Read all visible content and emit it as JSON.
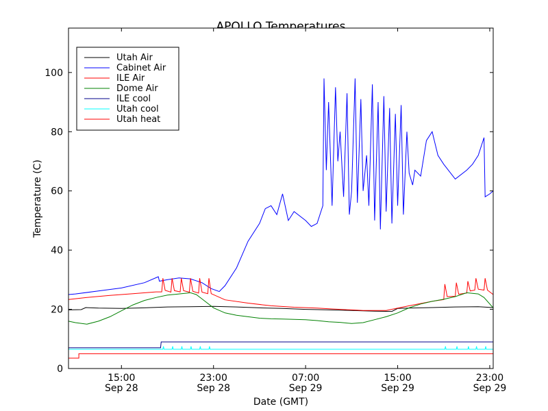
{
  "chart_data": {
    "type": "line",
    "title": "APOLLO Temperatures",
    "xlabel": "Date (GMT)",
    "ylabel": "Temperature (C)",
    "x_unit": "hours since Sep 28 00:00 GMT",
    "xlim": [
      10.4,
      47.3
    ],
    "ylim": [
      0,
      115
    ],
    "yticks": [
      0,
      20,
      40,
      60,
      80,
      100
    ],
    "xticks": [
      {
        "x": 15,
        "line1": "15:00",
        "line2": "Sep 28"
      },
      {
        "x": 23,
        "line1": "23:00",
        "line2": "Sep 28"
      },
      {
        "x": 31,
        "line1": "07:00",
        "line2": "Sep 29"
      },
      {
        "x": 39,
        "line1": "15:00",
        "line2": "Sep 29"
      },
      {
        "x": 47,
        "line1": "23:00",
        "line2": "Sep 29"
      }
    ],
    "legend_position": "top-left",
    "series": [
      {
        "name": "Utah Air",
        "color": "#000000",
        "x": [
          10.4,
          11.5,
          11.9,
          13,
          15,
          17,
          19,
          21,
          23,
          25,
          27,
          29,
          31,
          33,
          35,
          37,
          38.5,
          39,
          40,
          42,
          44,
          46,
          47.3
        ],
        "y": [
          19.8,
          19.9,
          20.6,
          20.4,
          20.3,
          20.5,
          20.8,
          20.9,
          21.0,
          20.8,
          20.5,
          20.3,
          20.0,
          19.8,
          19.6,
          19.4,
          19.3,
          20.3,
          20.4,
          20.6,
          20.8,
          20.9,
          20.6
        ]
      },
      {
        "name": "Cabinet Air",
        "color": "#0000ff",
        "x": [
          10.4,
          11,
          13,
          15,
          17,
          18.2,
          18.3,
          19,
          20,
          21,
          22,
          22.8,
          23.5,
          24,
          25,
          26,
          27,
          27.5,
          28,
          28.5,
          29,
          29.5,
          30,
          31,
          31.5,
          32,
          32.5,
          32.6,
          32.8,
          33,
          33.3,
          33.6,
          33.8,
          34,
          34.3,
          34.6,
          34.8,
          35,
          35.3,
          35.5,
          35.8,
          36,
          36.3,
          36.5,
          36.8,
          37,
          37.3,
          37.5,
          37.8,
          38,
          38.3,
          38.5,
          38.8,
          39,
          39.3,
          39.5,
          39.8,
          40,
          40.3,
          40.5,
          41,
          41.5,
          42,
          42.5,
          43,
          44,
          45,
          45.5,
          46,
          46.5,
          46.6,
          47,
          47.3
        ],
        "y": [
          25,
          25.2,
          26.2,
          27.2,
          29,
          31,
          29.5,
          30,
          30.6,
          30.3,
          29,
          27,
          26,
          28,
          34,
          43,
          49,
          54,
          55,
          52,
          59,
          50,
          53,
          50,
          48,
          49,
          55,
          98,
          67,
          90,
          55,
          95,
          70,
          80,
          58,
          93,
          52,
          60,
          98,
          56,
          91,
          60,
          72,
          55,
          96,
          50,
          90,
          47,
          92,
          53,
          88,
          49,
          86,
          55,
          89,
          52,
          80,
          66,
          62,
          67,
          65,
          77,
          80,
          72,
          69,
          64,
          67,
          69,
          72,
          78,
          58,
          59,
          60
        ]
      },
      {
        "name": "ILE Air",
        "color": "#ff0000",
        "x": [
          10.4,
          12,
          14,
          16,
          18,
          18.5,
          18.6,
          18.8,
          19.3,
          19.4,
          19.6,
          20.1,
          20.2,
          20.4,
          20.9,
          21.0,
          21.2,
          21.7,
          21.8,
          22,
          22.5,
          22.6,
          22.8,
          24,
          26,
          28,
          30,
          32,
          34,
          36,
          38,
          40,
          42,
          43,
          43.1,
          43.3,
          44,
          44.1,
          44.3,
          45,
          45.1,
          45.3,
          45.7,
          45.8,
          46,
          46.5,
          46.6,
          46.8,
          47.3
        ],
        "y": [
          23.3,
          24,
          24.7,
          25.3,
          25.9,
          25.9,
          30.5,
          26.4,
          25.8,
          30.5,
          26.3,
          25.9,
          30.5,
          26.3,
          25.8,
          30.5,
          26.1,
          25.5,
          30.5,
          25.8,
          25.3,
          30.5,
          25.3,
          23.2,
          22.1,
          21.2,
          20.7,
          20.4,
          20.0,
          19.6,
          19.6,
          21.2,
          22.7,
          23.3,
          28.5,
          24.3,
          24.4,
          29.0,
          25.1,
          25.5,
          29.5,
          26.2,
          26.5,
          30.5,
          26.8,
          26.5,
          30.5,
          26.5,
          25.0
        ]
      },
      {
        "name": "Dome Air",
        "color": "#008000",
        "x": [
          10.4,
          11,
          12,
          13,
          14,
          15,
          16,
          17,
          18,
          19,
          20,
          21,
          21.5,
          22,
          23,
          24,
          25,
          26,
          27,
          28,
          29,
          30,
          31,
          32,
          33,
          34,
          35,
          36,
          37,
          38,
          39,
          40,
          41,
          42,
          43,
          44,
          45,
          46,
          46.5,
          47.3
        ],
        "y": [
          16,
          15.5,
          15,
          16,
          17.5,
          19.5,
          21.5,
          23,
          24,
          24.8,
          25.2,
          25.6,
          25,
          23.5,
          20.5,
          18.8,
          18,
          17.5,
          17,
          16.8,
          16.7,
          16.6,
          16.5,
          16.2,
          15.8,
          15.6,
          15.2,
          15.5,
          16.5,
          17.5,
          18.8,
          20.5,
          21.8,
          22.7,
          23.4,
          24.3,
          25.6,
          25.2,
          24,
          20.5
        ]
      },
      {
        "name": "ILE cool",
        "color": "#00008b",
        "x": [
          10.4,
          18.4,
          18.45,
          47.3
        ],
        "y": [
          7,
          7,
          9,
          9
        ]
      },
      {
        "name": "Utah cool",
        "color": "#00ffff",
        "x": [
          10.4,
          18.6,
          18.65,
          18.7,
          19.4,
          19.45,
          19.5,
          20.2,
          20.25,
          20.3,
          21.0,
          21.05,
          21.1,
          21.8,
          21.85,
          21.9,
          22.6,
          22.65,
          22.7,
          43.1,
          43.15,
          43.2,
          44.1,
          44.15,
          44.2,
          45.1,
          45.15,
          45.2,
          45.8,
          45.85,
          45.9,
          46.6,
          46.65,
          46.7,
          47.3
        ],
        "y": [
          6.5,
          6.5,
          7.5,
          6.5,
          6.5,
          7.5,
          6.5,
          6.5,
          7.5,
          6.5,
          6.5,
          7.5,
          6.5,
          6.5,
          7.5,
          6.5,
          6.5,
          7.5,
          6.5,
          6.5,
          7.5,
          6.5,
          6.5,
          7.5,
          6.5,
          6.5,
          7.5,
          6.5,
          6.5,
          7.5,
          6.5,
          6.5,
          7.5,
          6.5,
          6.5
        ]
      },
      {
        "name": "Utah heat",
        "color": "#ff0000",
        "x": [
          10.4,
          11.3,
          11.3,
          11.8,
          11.8,
          38.1,
          38.1,
          38.5,
          38.5,
          47.3
        ],
        "y": [
          3.5,
          3.5,
          5,
          5,
          5,
          5,
          5,
          5,
          5,
          5
        ]
      }
    ]
  }
}
